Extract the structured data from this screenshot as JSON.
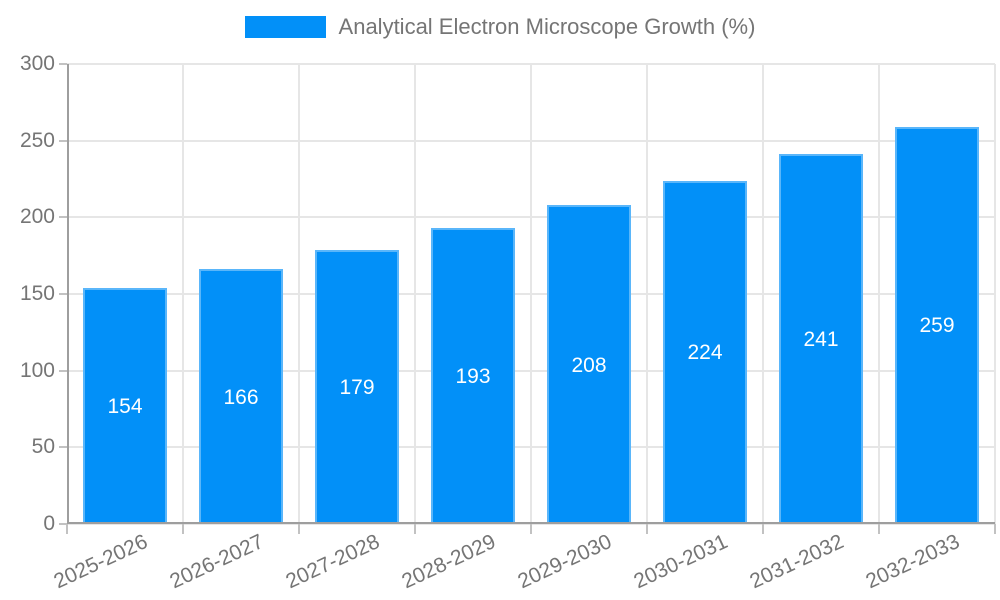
{
  "chart_data": {
    "type": "bar",
    "title": "Analytical Electron Microscope Growth (%)",
    "legend": {
      "label": "Analytical Electron Microscope Growth (%)",
      "position": "top"
    },
    "categories": [
      "2025-2026",
      "2026-2027",
      "2027-2028",
      "2028-2029",
      "2029-2030",
      "2030-2031",
      "2031-2032",
      "2032-2033"
    ],
    "values": [
      154,
      166,
      179,
      193,
      208,
      224,
      241,
      259
    ],
    "xlabel": "",
    "ylabel": "",
    "ylim": [
      0,
      300
    ],
    "yticks": [
      0,
      50,
      100,
      150,
      200,
      250,
      300
    ],
    "grid": true,
    "x_tick_rotation_deg": -25,
    "value_labels": "centered-inside-bars",
    "colors": {
      "bar": "#0290f8",
      "bar_border": "rgba(255,255,255,0.35)",
      "value_label": "#ffffff",
      "axis_text": "#757575",
      "axis_line": "#9e9e9e",
      "grid_line": "#e6e6e6",
      "tick_mark": "#c2c2c2"
    }
  }
}
